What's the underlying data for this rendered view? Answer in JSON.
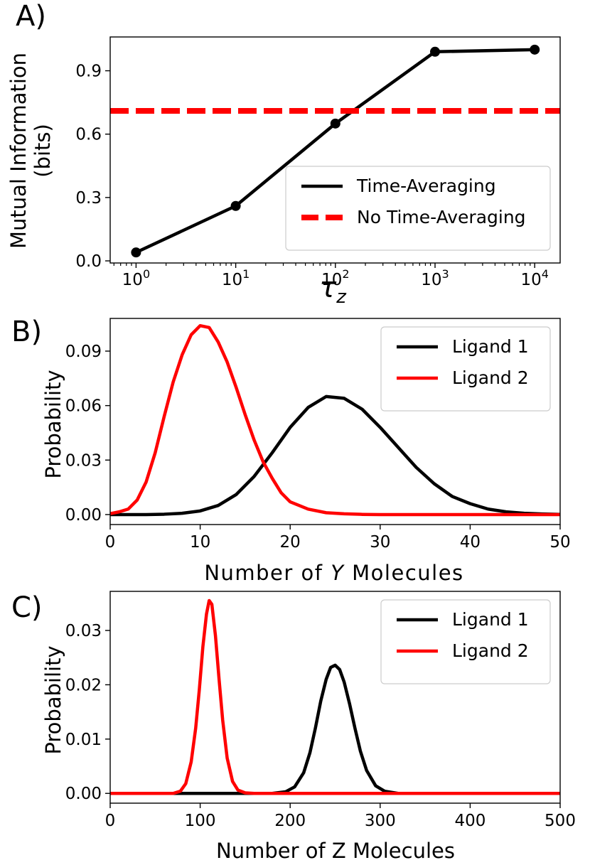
{
  "chart_data": [
    {
      "panel_label": "A)",
      "type": "line",
      "xscale": "log",
      "xlim": [
        0.55,
        18000
      ],
      "ylim": [
        -0.01,
        1.06
      ],
      "xticks": [
        1,
        10,
        100,
        1000,
        10000
      ],
      "xtick_labels": [
        {
          "base": "10",
          "exp": "0"
        },
        {
          "base": "10",
          "exp": "1"
        },
        {
          "base": "10",
          "exp": "2"
        },
        {
          "base": "10",
          "exp": "3"
        },
        {
          "base": "10",
          "exp": "4"
        }
      ],
      "yticks": [
        0.0,
        0.3,
        0.6,
        0.9
      ],
      "ytick_labels": [
        "0.0",
        "0.3",
        "0.6",
        "0.9"
      ],
      "xlabel": {
        "symbol": "τ",
        "sub": "z"
      },
      "ylabel": [
        "Mutual Information",
        "(bits)"
      ],
      "legend_position": "lower right",
      "series": [
        {
          "name": "Time-Averaging",
          "color": "#000000",
          "style": "solid",
          "markers": true,
          "x": [
            1,
            10,
            100,
            1000,
            10000
          ],
          "y": [
            0.04,
            0.26,
            0.65,
            0.99,
            1.0
          ]
        },
        {
          "name": "No Time-Averaging",
          "color": "#ff0000",
          "style": "dashed",
          "markers": false,
          "hline": 0.71
        }
      ]
    },
    {
      "panel_label": "B)",
      "type": "line",
      "xlim": [
        0,
        50
      ],
      "ylim": [
        -0.0055,
        0.108
      ],
      "xticks": [
        0,
        10,
        20,
        30,
        40,
        50
      ],
      "xtick_labels": [
        "0",
        "10",
        "20",
        "30",
        "40",
        "50"
      ],
      "yticks": [
        0.0,
        0.03,
        0.06,
        0.09
      ],
      "ytick_labels": [
        "0.00",
        "0.03",
        "0.06",
        "0.09"
      ],
      "xlabel": {
        "before": "Number of ",
        "italic": "Y",
        "after": " Molecules"
      },
      "ylabel": [
        "Probability"
      ],
      "legend_position": "upper right",
      "series": [
        {
          "name": "Ligand 1",
          "color": "#000000",
          "style": "solid",
          "x": [
            0,
            2,
            4,
            6,
            8,
            10,
            12,
            14,
            16,
            18,
            20,
            22,
            24,
            26,
            28,
            30,
            32,
            34,
            36,
            38,
            40,
            42,
            44,
            46,
            48,
            50
          ],
          "y": [
            0,
            0,
            0,
            0.0002,
            0.0007,
            0.002,
            0.005,
            0.011,
            0.021,
            0.034,
            0.048,
            0.059,
            0.065,
            0.064,
            0.058,
            0.048,
            0.037,
            0.026,
            0.017,
            0.01,
            0.006,
            0.003,
            0.0015,
            0.0007,
            0.0003,
            0.0001
          ]
        },
        {
          "name": "Ligand 2",
          "color": "#ff0000",
          "style": "solid",
          "x": [
            0,
            1,
            2,
            3,
            4,
            5,
            6,
            7,
            8,
            9,
            10,
            11,
            12,
            13,
            14,
            15,
            16,
            17,
            18,
            19,
            20,
            22,
            24,
            26,
            28,
            30,
            32,
            35,
            40,
            50
          ],
          "y": [
            0.0005,
            0.0015,
            0.003,
            0.008,
            0.018,
            0.034,
            0.054,
            0.073,
            0.088,
            0.099,
            0.104,
            0.103,
            0.095,
            0.084,
            0.07,
            0.055,
            0.041,
            0.029,
            0.02,
            0.012,
            0.007,
            0.003,
            0.001,
            0.0004,
            0.0001,
            0,
            0,
            0,
            0,
            0
          ]
        }
      ]
    },
    {
      "panel_label": "C)",
      "type": "line",
      "xlim": [
        0,
        500
      ],
      "ylim": [
        -0.0018,
        0.0372
      ],
      "xticks": [
        0,
        100,
        200,
        300,
        400,
        500
      ],
      "xtick_labels": [
        "0",
        "100",
        "200",
        "300",
        "400",
        "500"
      ],
      "yticks": [
        0.0,
        0.01,
        0.02,
        0.03
      ],
      "ytick_labels": [
        "0.00",
        "0.01",
        "0.02",
        "0.03"
      ],
      "xlabel": {
        "before": "Number of Z Molecules",
        "italic": "",
        "after": ""
      },
      "ylabel": [
        "Probability"
      ],
      "legend_position": "upper right",
      "series": [
        {
          "name": "Ligand 1",
          "color": "#000000",
          "style": "solid",
          "x": [
            0,
            180,
            195,
            205,
            215,
            222,
            228,
            234,
            240,
            245,
            250,
            255,
            260,
            266,
            272,
            278,
            285,
            295,
            305,
            320,
            500
          ],
          "y": [
            0,
            0,
            0.0003,
            0.0012,
            0.0038,
            0.0075,
            0.012,
            0.017,
            0.021,
            0.0232,
            0.0236,
            0.0228,
            0.0205,
            0.0165,
            0.012,
            0.0078,
            0.0042,
            0.0014,
            0.0004,
            0,
            0
          ]
        },
        {
          "name": "Ligand 2",
          "color": "#ff0000",
          "style": "solid",
          "x": [
            0,
            70,
            78,
            84,
            90,
            95,
            99,
            103,
            107,
            110,
            113,
            117,
            121,
            125,
            130,
            136,
            142,
            150,
            160,
            500
          ],
          "y": [
            0,
            0,
            0.0004,
            0.0018,
            0.0058,
            0.012,
            0.019,
            0.027,
            0.033,
            0.0355,
            0.0348,
            0.029,
            0.021,
            0.0135,
            0.0065,
            0.0022,
            0.0006,
            0.0001,
            0,
            0
          ]
        }
      ]
    }
  ]
}
